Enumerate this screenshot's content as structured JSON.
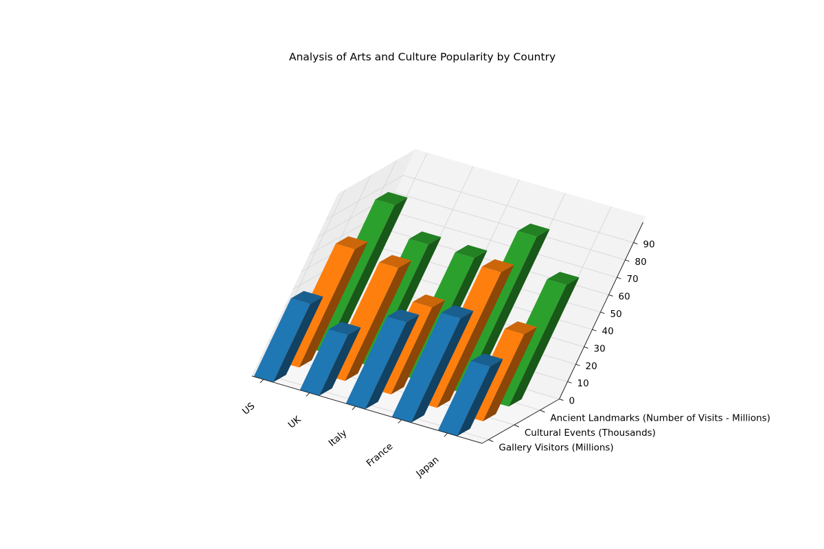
{
  "chart_data": {
    "type": "bar",
    "title": "Analysis of Arts and Culture Popularity by Country",
    "categories": [
      "US",
      "UK",
      "Italy",
      "France",
      "Japan"
    ],
    "series": [
      {
        "name": "Gallery Visitors (Millions)",
        "values": [
          45,
          35,
          50,
          60,
          40
        ]
      },
      {
        "name": "Cultural Events (Thousands)",
        "values": [
          68,
          65,
          50,
          78,
          50
        ]
      },
      {
        "name": "Ancient Landmarks (Number of Visits - Millions)",
        "values": [
          85,
          70,
          70,
          90,
          70
        ]
      }
    ],
    "zlim": [
      0,
      90
    ],
    "zticks": [
      0,
      10,
      20,
      30,
      40,
      50,
      60,
      70,
      80,
      90
    ],
    "grid": true,
    "colors": [
      "#1f77b4",
      "#ff7f0e",
      "#2ca02c"
    ]
  }
}
